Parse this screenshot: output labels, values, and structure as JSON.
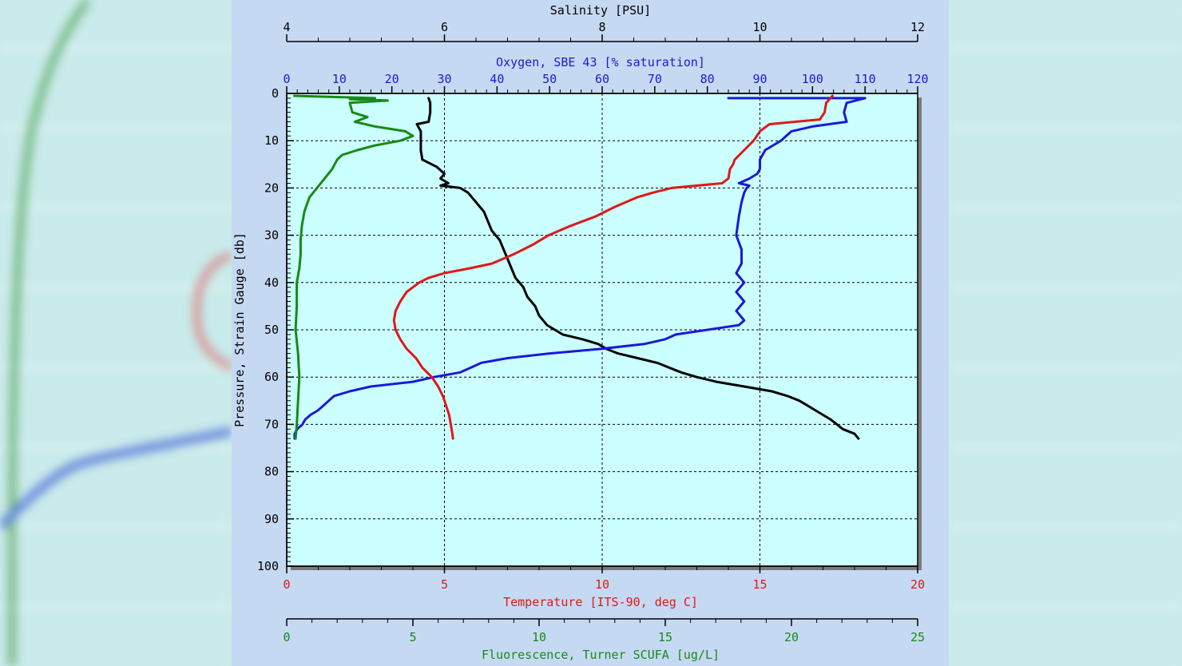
{
  "chart_data": {
    "type": "line",
    "colors": {
      "salinity": "#000000",
      "oxygen": "#1a1ad6",
      "temperature": "#e01818",
      "fluorescence": "#178a17",
      "plot_background": "#ccffff",
      "panel_background": "#c6d9f2"
    },
    "axes": {
      "salinity": {
        "label": "Salinity [PSU]",
        "range": [
          4,
          12
        ],
        "ticks": [
          "4",
          "6",
          "8",
          "10",
          "12"
        ]
      },
      "oxygen": {
        "label": "Oxygen, SBE 43 [% saturation]",
        "range": [
          0,
          120
        ],
        "ticks": [
          "0",
          "10",
          "20",
          "30",
          "40",
          "50",
          "60",
          "70",
          "80",
          "90",
          "100",
          "110",
          "120"
        ]
      },
      "pressure": {
        "label": "Pressure, Strain Gauge [db]",
        "range": [
          0,
          100
        ],
        "inverted": true,
        "ticks": [
          "0",
          "10",
          "20",
          "30",
          "40",
          "50",
          "60",
          "70",
          "80",
          "90",
          "100"
        ]
      },
      "temperature": {
        "label": "Temperature [ITS-90, deg C]",
        "range": [
          0,
          20
        ],
        "ticks": [
          "0",
          "5",
          "10",
          "15",
          "20"
        ]
      },
      "fluorescence": {
        "label": "Fluorescence, Turner SCUFA [ug/L]",
        "range": [
          0,
          25
        ],
        "ticks": [
          "0",
          "5",
          "10",
          "15",
          "20",
          "25"
        ]
      }
    },
    "grid": true,
    "series": [
      {
        "key": "salinity",
        "axis": "salinity",
        "points": [
          {
            "p": 1,
            "v": 5.8
          },
          {
            "p": 2,
            "v": 5.82
          },
          {
            "p": 4,
            "v": 5.82
          },
          {
            "p": 6,
            "v": 5.8
          },
          {
            "p": 6.5,
            "v": 5.65
          },
          {
            "p": 8,
            "v": 5.7
          },
          {
            "p": 10,
            "v": 5.7
          },
          {
            "p": 12,
            "v": 5.7
          },
          {
            "p": 14,
            "v": 5.72
          },
          {
            "p": 15.5,
            "v": 5.9
          },
          {
            "p": 17,
            "v": 6.0
          },
          {
            "p": 18,
            "v": 5.95
          },
          {
            "p": 19,
            "v": 6.05
          },
          {
            "p": 19.5,
            "v": 5.95
          },
          {
            "p": 20,
            "v": 6.2
          },
          {
            "p": 21,
            "v": 6.3
          },
          {
            "p": 23,
            "v": 6.4
          },
          {
            "p": 25,
            "v": 6.5
          },
          {
            "p": 27,
            "v": 6.55
          },
          {
            "p": 29,
            "v": 6.6
          },
          {
            "p": 31,
            "v": 6.7
          },
          {
            "p": 33,
            "v": 6.75
          },
          {
            "p": 35,
            "v": 6.8
          },
          {
            "p": 37,
            "v": 6.85
          },
          {
            "p": 39,
            "v": 6.9
          },
          {
            "p": 41,
            "v": 7.0
          },
          {
            "p": 43,
            "v": 7.05
          },
          {
            "p": 45,
            "v": 7.15
          },
          {
            "p": 47,
            "v": 7.2
          },
          {
            "p": 49,
            "v": 7.3
          },
          {
            "p": 51,
            "v": 7.5
          },
          {
            "p": 52,
            "v": 7.75
          },
          {
            "p": 53,
            "v": 7.95
          },
          {
            "p": 54,
            "v": 8.05
          },
          {
            "p": 55,
            "v": 8.2
          },
          {
            "p": 56,
            "v": 8.45
          },
          {
            "p": 57,
            "v": 8.7
          },
          {
            "p": 58,
            "v": 8.85
          },
          {
            "p": 59,
            "v": 9.0
          },
          {
            "p": 60,
            "v": 9.2
          },
          {
            "p": 61,
            "v": 9.45
          },
          {
            "p": 62,
            "v": 9.8
          },
          {
            "p": 63,
            "v": 10.15
          },
          {
            "p": 64,
            "v": 10.35
          },
          {
            "p": 65,
            "v": 10.5
          },
          {
            "p": 66,
            "v": 10.6
          },
          {
            "p": 67,
            "v": 10.7
          },
          {
            "p": 69,
            "v": 10.9
          },
          {
            "p": 71,
            "v": 11.05
          },
          {
            "p": 72,
            "v": 11.2
          },
          {
            "p": 73,
            "v": 11.25
          }
        ]
      },
      {
        "key": "oxygen",
        "axis": "oxygen",
        "points": [
          {
            "p": 1,
            "v": 84
          },
          {
            "p": 1,
            "v": 110
          },
          {
            "p": 2,
            "v": 106.5
          },
          {
            "p": 4,
            "v": 106
          },
          {
            "p": 6,
            "v": 106.5
          },
          {
            "p": 7,
            "v": 100
          },
          {
            "p": 8,
            "v": 96
          },
          {
            "p": 10,
            "v": 94
          },
          {
            "p": 12,
            "v": 91
          },
          {
            "p": 14,
            "v": 90
          },
          {
            "p": 16,
            "v": 90
          },
          {
            "p": 17,
            "v": 89.5
          },
          {
            "p": 18,
            "v": 88
          },
          {
            "p": 19,
            "v": 86
          },
          {
            "p": 19.5,
            "v": 88
          },
          {
            "p": 20,
            "v": 87.5
          },
          {
            "p": 21,
            "v": 87
          },
          {
            "p": 23,
            "v": 86.5
          },
          {
            "p": 26,
            "v": 86
          },
          {
            "p": 30,
            "v": 85.5
          },
          {
            "p": 33,
            "v": 86.5
          },
          {
            "p": 36,
            "v": 86.5
          },
          {
            "p": 38,
            "v": 85.5
          },
          {
            "p": 40,
            "v": 87
          },
          {
            "p": 42,
            "v": 85.5
          },
          {
            "p": 44,
            "v": 87
          },
          {
            "p": 46,
            "v": 85.5
          },
          {
            "p": 48,
            "v": 87
          },
          {
            "p": 49,
            "v": 86
          },
          {
            "p": 50,
            "v": 80
          },
          {
            "p": 51,
            "v": 74
          },
          {
            "p": 52,
            "v": 72
          },
          {
            "p": 53,
            "v": 68
          },
          {
            "p": 54,
            "v": 60
          },
          {
            "p": 55,
            "v": 50
          },
          {
            "p": 56,
            "v": 42
          },
          {
            "p": 57,
            "v": 37
          },
          {
            "p": 58,
            "v": 35
          },
          {
            "p": 59,
            "v": 33
          },
          {
            "p": 60,
            "v": 28
          },
          {
            "p": 61,
            "v": 24
          },
          {
            "p": 62,
            "v": 16
          },
          {
            "p": 63,
            "v": 12
          },
          {
            "p": 64,
            "v": 9
          },
          {
            "p": 65,
            "v": 8
          },
          {
            "p": 66,
            "v": 7
          },
          {
            "p": 67,
            "v": 6
          },
          {
            "p": 68,
            "v": 4.5
          },
          {
            "p": 69,
            "v": 3.5
          },
          {
            "p": 70,
            "v": 3
          },
          {
            "p": 71,
            "v": 2
          },
          {
            "p": 72,
            "v": 1.5
          },
          {
            "p": 73,
            "v": 1.5
          }
        ]
      },
      {
        "key": "temperature",
        "axis": "temperature",
        "points": [
          {
            "p": 0.5,
            "v": 17.3
          },
          {
            "p": 2,
            "v": 17.1
          },
          {
            "p": 4,
            "v": 17.05
          },
          {
            "p": 5.5,
            "v": 16.9
          },
          {
            "p": 6.5,
            "v": 15.3
          },
          {
            "p": 8,
            "v": 15.0
          },
          {
            "p": 10,
            "v": 14.8
          },
          {
            "p": 12,
            "v": 14.5
          },
          {
            "p": 14,
            "v": 14.2
          },
          {
            "p": 15,
            "v": 14.15
          },
          {
            "p": 16,
            "v": 14.05
          },
          {
            "p": 18,
            "v": 14.0
          },
          {
            "p": 19,
            "v": 13.8
          },
          {
            "p": 20,
            "v": 12.2
          },
          {
            "p": 21,
            "v": 11.6
          },
          {
            "p": 22,
            "v": 11.1
          },
          {
            "p": 24,
            "v": 10.4
          },
          {
            "p": 26,
            "v": 9.8
          },
          {
            "p": 28,
            "v": 9.0
          },
          {
            "p": 30,
            "v": 8.3
          },
          {
            "p": 32,
            "v": 7.8
          },
          {
            "p": 34,
            "v": 7.2
          },
          {
            "p": 36,
            "v": 6.5
          },
          {
            "p": 37,
            "v": 5.8
          },
          {
            "p": 38,
            "v": 5.0
          },
          {
            "p": 39,
            "v": 4.5
          },
          {
            "p": 40,
            "v": 4.2
          },
          {
            "p": 41,
            "v": 4.0
          },
          {
            "p": 42,
            "v": 3.8
          },
          {
            "p": 44,
            "v": 3.6
          },
          {
            "p": 46,
            "v": 3.45
          },
          {
            "p": 48,
            "v": 3.4
          },
          {
            "p": 50,
            "v": 3.45
          },
          {
            "p": 52,
            "v": 3.6
          },
          {
            "p": 54,
            "v": 3.8
          },
          {
            "p": 56,
            "v": 4.1
          },
          {
            "p": 58,
            "v": 4.3
          },
          {
            "p": 60,
            "v": 4.6
          },
          {
            "p": 62,
            "v": 4.8
          },
          {
            "p": 64,
            "v": 4.95
          },
          {
            "p": 66,
            "v": 5.05
          },
          {
            "p": 68,
            "v": 5.15
          },
          {
            "p": 70,
            "v": 5.2
          },
          {
            "p": 72,
            "v": 5.25
          },
          {
            "p": 73,
            "v": 5.27
          }
        ]
      },
      {
        "key": "fluorescence",
        "axis": "fluorescence",
        "points": [
          {
            "p": 0.5,
            "v": 0.3
          },
          {
            "p": 1,
            "v": 3.5
          },
          {
            "p": 1.2,
            "v": 2.5
          },
          {
            "p": 1.5,
            "v": 4.0
          },
          {
            "p": 2,
            "v": 2.5
          },
          {
            "p": 4,
            "v": 2.6
          },
          {
            "p": 5,
            "v": 3.2
          },
          {
            "p": 6,
            "v": 2.7
          },
          {
            "p": 7,
            "v": 3.5
          },
          {
            "p": 8,
            "v": 4.7
          },
          {
            "p": 9,
            "v": 5.0
          },
          {
            "p": 10,
            "v": 4.5
          },
          {
            "p": 11,
            "v": 3.5
          },
          {
            "p": 12,
            "v": 2.8
          },
          {
            "p": 13,
            "v": 2.2
          },
          {
            "p": 14,
            "v": 2.0
          },
          {
            "p": 16,
            "v": 1.8
          },
          {
            "p": 18,
            "v": 1.5
          },
          {
            "p": 20,
            "v": 1.2
          },
          {
            "p": 22,
            "v": 0.9
          },
          {
            "p": 25,
            "v": 0.7
          },
          {
            "p": 28,
            "v": 0.6
          },
          {
            "p": 31,
            "v": 0.55
          },
          {
            "p": 34,
            "v": 0.55
          },
          {
            "p": 37,
            "v": 0.5
          },
          {
            "p": 40,
            "v": 0.4
          },
          {
            "p": 45,
            "v": 0.4
          },
          {
            "p": 50,
            "v": 0.35
          },
          {
            "p": 55,
            "v": 0.45
          },
          {
            "p": 60,
            "v": 0.5
          },
          {
            "p": 65,
            "v": 0.45
          },
          {
            "p": 70,
            "v": 0.4
          },
          {
            "p": 73,
            "v": 0.35
          }
        ]
      }
    ]
  }
}
